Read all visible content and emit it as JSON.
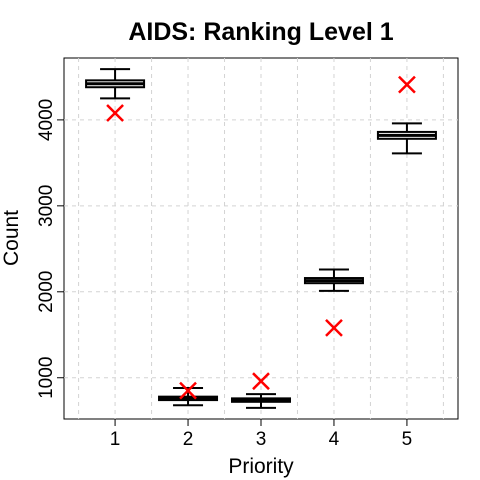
{
  "chart_data": {
    "type": "boxplot",
    "title": "AIDS: Ranking Level 1",
    "xlabel": "Priority",
    "ylabel": "Count",
    "categories": [
      "1",
      "2",
      "3",
      "4",
      "5"
    ],
    "yticks": [
      1000,
      2000,
      3000,
      4000
    ],
    "ylim": [
      520,
      4720
    ],
    "grid": true,
    "boxes": [
      {
        "category": "1",
        "whisker_low": 4250,
        "q1": 4380,
        "median": 4420,
        "q3": 4460,
        "whisker_high": 4590
      },
      {
        "category": "2",
        "whisker_low": 680,
        "q1": 740,
        "median": 760,
        "q3": 780,
        "whisker_high": 880
      },
      {
        "category": "3",
        "whisker_low": 650,
        "q1": 720,
        "median": 740,
        "q3": 760,
        "whisker_high": 810
      },
      {
        "category": "4",
        "whisker_low": 2010,
        "q1": 2100,
        "median": 2130,
        "q3": 2160,
        "whisker_high": 2260
      },
      {
        "category": "5",
        "whisker_low": 3610,
        "q1": 3780,
        "median": 3820,
        "q3": 3860,
        "whisker_high": 3960
      }
    ],
    "markers": {
      "style": "x",
      "color": "#ff0000",
      "values": [
        4080,
        850,
        960,
        1580,
        4410
      ]
    },
    "colors": {
      "box": "#000000",
      "grid": "#d3d3d3",
      "marker": "#ff0000"
    }
  }
}
